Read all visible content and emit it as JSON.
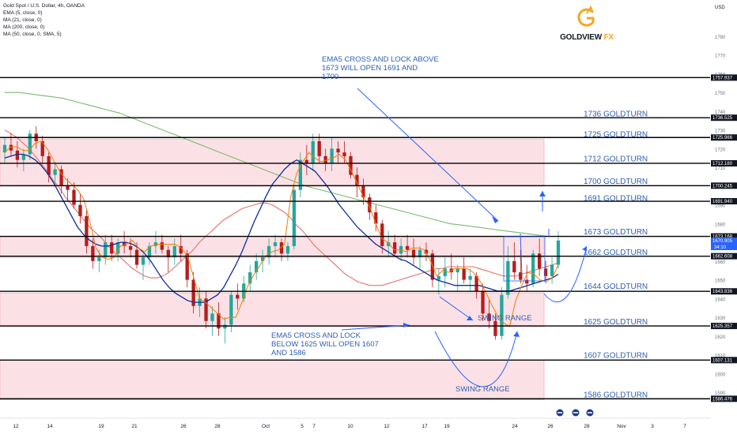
{
  "header": {
    "symbol_line": "Gold Spot / U.S. Dollar, 4h, OANDA",
    "indicators": [
      "EMA (5, close, 0)",
      "MA (21, close, 0)",
      "MA (200, close, 0)",
      "MA (50, close, 0, SMA, 5)"
    ]
  },
  "logo": {
    "brand": "GOLDVIEW",
    "suffix": " FX",
    "icon": "g-arrow-logo-icon"
  },
  "colors": {
    "background": "#ffffff",
    "zone_fill": "#fbe1e5",
    "zone_edge": "#f2a9b4",
    "bull": "#26a69a",
    "bear": "#b71c1c",
    "ema5": "#f57c00",
    "ma21": "#0d2c9c",
    "ma50": "#e57373",
    "ma200": "#7cb86e",
    "annotation": "#2962ff",
    "level_text": "#2f5fb3",
    "hline": "#000000",
    "axis_text": "#131722",
    "price_tag": "#131722"
  },
  "chart_data": {
    "type": "candlestick",
    "ylim": [
      1582,
      1796
    ],
    "y_axis": {
      "unit_label": "USD",
      "ticks": [
        1590,
        1600,
        1610,
        1620,
        1630,
        1640,
        1650,
        1660,
        1670,
        1680,
        1690,
        1700,
        1710,
        1720,
        1730,
        1740,
        1750,
        1760,
        1770,
        1780
      ]
    },
    "x_axis": {
      "ticks": [
        "12",
        "14",
        "19",
        "21",
        "26",
        "28",
        "Oct",
        "5",
        "7",
        "10",
        "12",
        "17",
        "19",
        "24",
        "26",
        "28",
        "Nov",
        "3",
        "7"
      ]
    },
    "price_tags": [
      {
        "value": "1757.937"
      },
      {
        "value": "1736.525"
      },
      {
        "value": "1725.966"
      },
      {
        "value": "1712.180"
      },
      {
        "value": "1700.245"
      },
      {
        "value": "1691.940"
      },
      {
        "value": "1673.168"
      },
      {
        "value": "1670.905",
        "sub": "34:10",
        "highlight": true
      },
      {
        "value": "1662.608"
      },
      {
        "value": "1643.836"
      },
      {
        "value": "1625.357"
      },
      {
        "value": "1607.131"
      },
      {
        "value": "1586.476"
      }
    ],
    "levels": [
      {
        "price": 1736,
        "label": "1736 GOLDTURN"
      },
      {
        "price": 1725,
        "label": "1725 GOLDTURN"
      },
      {
        "price": 1712,
        "label": "1712 GOLDTURN"
      },
      {
        "price": 1700,
        "label": "1700 GOLDTURN"
      },
      {
        "price": 1691,
        "label": "1691 GOLDTURN"
      },
      {
        "price": 1673,
        "label": "1673 GOLDTURN"
      },
      {
        "price": 1662,
        "label": "1662 GOLDTURN"
      },
      {
        "price": 1644,
        "label": "1644 GOLDTURN"
      },
      {
        "price": 1625,
        "label": "1625 GOLDTURN"
      },
      {
        "price": 1607,
        "label": "1607 GOLDTURN"
      },
      {
        "price": 1586,
        "label": "1586 GOLDTURN"
      }
    ],
    "zones": [
      {
        "from": 1700,
        "to": 1725
      },
      {
        "from": 1662,
        "to": 1673
      },
      {
        "from": 1625,
        "to": 1643
      },
      {
        "from": 1586,
        "to": 1607
      }
    ],
    "annotations": [
      {
        "lines": [
          "EMA5 CROSS AND LOCK ABOVE",
          "1673 WILL OPEN 1691 AND",
          "1700"
        ]
      },
      {
        "lines": [
          "EMA5 CROSS AND LOCK",
          "BELOW 1625 WILL OPEN 1607",
          "AND 1586"
        ]
      },
      {
        "lines": [
          "SWING RANGE"
        ]
      },
      {
        "lines": [
          "SWING RANGE"
        ]
      }
    ],
    "series": [
      {
        "name": "EMA (5, close, 0)",
        "values": [
          1718,
          1721,
          1721,
          1719,
          1719,
          1723,
          1724,
          1720,
          1714,
          1708,
          1704,
          1701,
          1698,
          1693,
          1681,
          1667,
          1662,
          1661,
          1662,
          1668,
          1669,
          1671,
          1667,
          1665,
          1668,
          1669,
          1669,
          1669,
          1669,
          1667,
          1663,
          1652,
          1640,
          1638,
          1635,
          1632,
          1629,
          1630,
          1630,
          1638,
          1647,
          1653,
          1658,
          1663,
          1665,
          1666,
          1669,
          1694,
          1707,
          1713,
          1718,
          1715,
          1713,
          1714,
          1715,
          1717,
          1714,
          1708,
          1701,
          1694,
          1689,
          1680,
          1672,
          1670,
          1666,
          1666,
          1665,
          1667,
          1667,
          1666,
          1660,
          1652,
          1655,
          1654,
          1656,
          1656,
          1656,
          1654,
          1650,
          1644,
          1637,
          1631,
          1627,
          1625,
          1639,
          1647,
          1654,
          1653,
          1650,
          1649,
          1651,
          1658
        ]
      },
      {
        "name": "MA (21, close, 0)",
        "values": [
          1715,
          1716,
          1717,
          1717,
          1716,
          1714,
          1711,
          1707,
          1702,
          1696,
          1690,
          1684,
          1678,
          1674,
          1671,
          1669,
          1668,
          1668,
          1669,
          1670,
          1670,
          1669,
          1667,
          1664,
          1660,
          1655,
          1650,
          1646,
          1643,
          1641,
          1639,
          1638,
          1638,
          1638,
          1640,
          1642,
          1646,
          1652,
          1658,
          1665,
          1673,
          1681,
          1688,
          1695,
          1701,
          1705,
          1709,
          1712,
          1714,
          1712,
          1710,
          1708,
          1704,
          1700,
          1695,
          1690,
          1686,
          1682,
          1678,
          1675,
          1672,
          1669,
          1667,
          1665,
          1663,
          1661,
          1660,
          1658,
          1656,
          1654,
          1652,
          1650,
          1649,
          1648,
          1647,
          1647,
          1647,
          1647,
          1647,
          1646,
          1645,
          1644,
          1644,
          1644,
          1645,
          1646,
          1647,
          1648,
          1649,
          1650,
          1651,
          1653
        ]
      },
      {
        "name": "MA (50, close, 0, SMA, 5)",
        "values": [
          1730,
          1728,
          1726,
          1723,
          1720,
          1716,
          1712,
          1708,
          1703,
          1699,
          1694,
          1690,
          1686,
          1682,
          1678,
          1675,
          1672,
          1668,
          1665,
          1662,
          1659,
          1656,
          1654,
          1652,
          1651,
          1651,
          1652,
          1654,
          1657,
          1660,
          1663,
          1666,
          1670,
          1673,
          1676,
          1679,
          1682,
          1684,
          1686,
          1688,
          1689,
          1690,
          1691,
          1691,
          1690,
          1688,
          1686,
          1683,
          1679,
          1676,
          1672,
          1668,
          1665,
          1662,
          1659,
          1656,
          1653,
          1651,
          1649,
          1648,
          1647,
          1647,
          1647,
          1648,
          1649,
          1650,
          1651,
          1652,
          1653,
          1654,
          1655,
          1656,
          1656,
          1657,
          1657,
          1657,
          1657,
          1657,
          1656,
          1655,
          1654,
          1653,
          1652,
          1652,
          1652,
          1653,
          1654,
          1655,
          1656,
          1657,
          1658,
          1659
        ]
      },
      {
        "name": "MA (200, close, 0)",
        "values": [
          1750,
          1750,
          1749,
          1748,
          1747,
          1745,
          1743,
          1741,
          1739,
          1736,
          1733,
          1730,
          1727,
          1724,
          1721,
          1718,
          1715,
          1712,
          1709,
          1706,
          1703,
          1700,
          1698,
          1696,
          1694,
          1692,
          1690,
          1688,
          1686,
          1684,
          1682,
          1680,
          1679,
          1678,
          1677,
          1676,
          1675,
          1674,
          1673
        ]
      }
    ],
    "candles": [
      [
        1718,
        1726,
        1712,
        1722
      ],
      [
        1722,
        1728,
        1716,
        1719
      ],
      [
        1719,
        1724,
        1710,
        1714
      ],
      [
        1714,
        1720,
        1708,
        1717
      ],
      [
        1717,
        1730,
        1714,
        1728
      ],
      [
        1728,
        1732,
        1720,
        1724
      ],
      [
        1724,
        1727,
        1712,
        1716
      ],
      [
        1716,
        1718,
        1702,
        1706
      ],
      [
        1706,
        1712,
        1700,
        1709
      ],
      [
        1709,
        1711,
        1696,
        1700
      ],
      [
        1700,
        1704,
        1692,
        1698
      ],
      [
        1698,
        1702,
        1688,
        1690
      ],
      [
        1690,
        1696,
        1680,
        1684
      ],
      [
        1684,
        1688,
        1664,
        1668
      ],
      [
        1668,
        1672,
        1656,
        1660
      ],
      [
        1660,
        1666,
        1654,
        1662
      ],
      [
        1662,
        1674,
        1658,
        1670
      ],
      [
        1670,
        1674,
        1660,
        1664
      ],
      [
        1664,
        1672,
        1660,
        1670
      ],
      [
        1670,
        1676,
        1664,
        1668
      ],
      [
        1668,
        1672,
        1662,
        1666
      ],
      [
        1666,
        1670,
        1656,
        1658
      ],
      [
        1658,
        1664,
        1650,
        1662
      ],
      [
        1662,
        1670,
        1658,
        1668
      ],
      [
        1668,
        1676,
        1664,
        1670
      ],
      [
        1670,
        1674,
        1664,
        1666
      ],
      [
        1666,
        1668,
        1654,
        1662
      ],
      [
        1662,
        1672,
        1658,
        1668
      ],
      [
        1668,
        1674,
        1660,
        1664
      ],
      [
        1664,
        1666,
        1646,
        1650
      ],
      [
        1650,
        1654,
        1632,
        1636
      ],
      [
        1636,
        1646,
        1630,
        1640
      ],
      [
        1640,
        1644,
        1624,
        1628
      ],
      [
        1628,
        1636,
        1620,
        1632
      ],
      [
        1632,
        1638,
        1620,
        1624
      ],
      [
        1624,
        1630,
        1616,
        1626
      ],
      [
        1626,
        1644,
        1622,
        1642
      ],
      [
        1642,
        1648,
        1634,
        1640
      ],
      [
        1640,
        1652,
        1638,
        1648
      ],
      [
        1648,
        1658,
        1644,
        1654
      ],
      [
        1654,
        1664,
        1650,
        1660
      ],
      [
        1660,
        1666,
        1654,
        1662
      ],
      [
        1662,
        1672,
        1658,
        1668
      ],
      [
        1668,
        1674,
        1662,
        1670
      ],
      [
        1670,
        1672,
        1660,
        1664
      ],
      [
        1664,
        1670,
        1660,
        1668
      ],
      [
        1668,
        1700,
        1666,
        1698
      ],
      [
        1698,
        1718,
        1694,
        1714
      ],
      [
        1714,
        1722,
        1706,
        1712
      ],
      [
        1712,
        1728,
        1708,
        1724
      ],
      [
        1724,
        1728,
        1712,
        1716
      ],
      [
        1716,
        1720,
        1708,
        1712
      ],
      [
        1712,
        1726,
        1708,
        1720
      ],
      [
        1720,
        1724,
        1712,
        1718
      ],
      [
        1718,
        1724,
        1712,
        1716
      ],
      [
        1716,
        1718,
        1704,
        1706
      ],
      [
        1706,
        1710,
        1694,
        1700
      ],
      [
        1700,
        1704,
        1690,
        1694
      ],
      [
        1694,
        1696,
        1682,
        1686
      ],
      [
        1686,
        1690,
        1676,
        1680
      ],
      [
        1680,
        1682,
        1664,
        1668
      ],
      [
        1668,
        1676,
        1662,
        1670
      ],
      [
        1670,
        1674,
        1662,
        1664
      ],
      [
        1664,
        1672,
        1660,
        1668
      ],
      [
        1668,
        1674,
        1662,
        1666
      ],
      [
        1666,
        1672,
        1658,
        1662
      ],
      [
        1662,
        1668,
        1656,
        1666
      ],
      [
        1666,
        1670,
        1660,
        1664
      ],
      [
        1664,
        1666,
        1646,
        1650
      ],
      [
        1650,
        1656,
        1642,
        1652
      ],
      [
        1652,
        1662,
        1646,
        1656
      ],
      [
        1656,
        1664,
        1650,
        1654
      ],
      [
        1654,
        1658,
        1644,
        1656
      ],
      [
        1656,
        1662,
        1648,
        1650
      ],
      [
        1650,
        1656,
        1644,
        1652
      ],
      [
        1652,
        1654,
        1640,
        1644
      ],
      [
        1644,
        1648,
        1628,
        1632
      ],
      [
        1632,
        1640,
        1624,
        1628
      ],
      [
        1628,
        1632,
        1618,
        1620
      ],
      [
        1620,
        1646,
        1618,
        1642
      ],
      [
        1642,
        1668,
        1640,
        1660
      ],
      [
        1660,
        1670,
        1650,
        1654
      ],
      [
        1654,
        1666,
        1648,
        1650
      ],
      [
        1650,
        1658,
        1644,
        1648
      ],
      [
        1648,
        1666,
        1646,
        1664
      ],
      [
        1664,
        1672,
        1652,
        1656
      ],
      [
        1656,
        1660,
        1648,
        1652
      ],
      [
        1652,
        1662,
        1648,
        1658
      ],
      [
        1658,
        1676,
        1656,
        1671
      ]
    ]
  }
}
